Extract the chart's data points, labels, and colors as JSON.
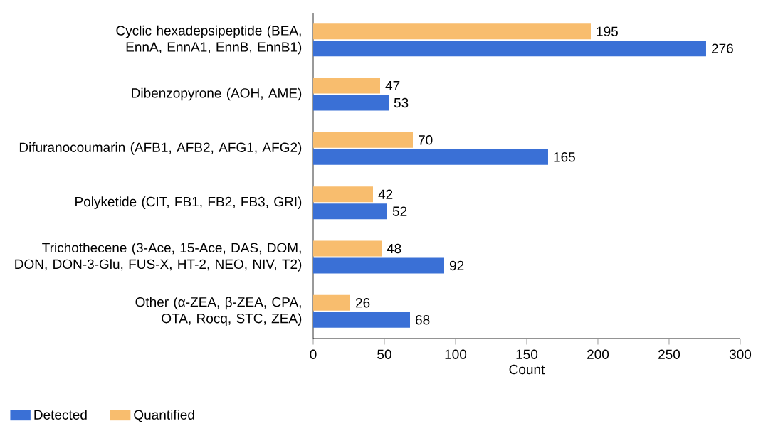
{
  "chart_data": {
    "type": "bar",
    "orientation": "horizontal",
    "xlabel": "Count",
    "categories": [
      "Cyclic hexadepsipeptide (BEA, EnnA, EnnA1, EnnB, EnnB1)",
      "Dibenzopyrone (AOH, AME)",
      "Difuranocoumarin (AFB1, AFB2, AFG1, AFG2)",
      "Polyketide (CIT, FB1, FB2, FB3, GRI)",
      "Trichothecene (3-Ace, 15-Ace, DAS, DOM, DON, DON-3-Glu, FUS-X, HT-2, NEO, NIV, T2)",
      "Other (α-ZEA, β-ZEA, CPA, OTA, Rocq, STC, ZEA)"
    ],
    "series": [
      {
        "name": "Detected",
        "color": "#3a70d6",
        "values": [
          276,
          53,
          165,
          52,
          92,
          68
        ]
      },
      {
        "name": "Quantified",
        "color": "#f8bd6e",
        "values": [
          195,
          47,
          70,
          42,
          48,
          26
        ]
      }
    ],
    "xlim": [
      0,
      300
    ],
    "xticks": [
      0,
      50,
      100,
      150,
      200,
      250,
      300
    ],
    "data_labels": true,
    "legend": "bottom left",
    "grid": false
  }
}
